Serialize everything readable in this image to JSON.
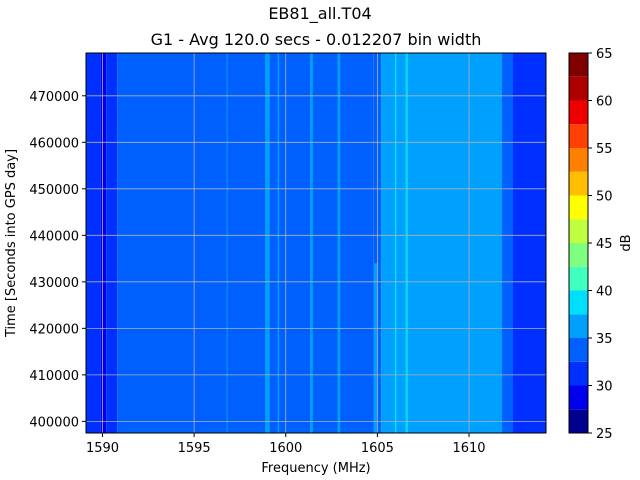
{
  "chart_data": {
    "type": "heatmap",
    "title": "EB81_all.T04",
    "subtitle": "G1 - Avg 120.0 secs - 0.012207 bin width",
    "xlabel": "Frequency (MHz)",
    "ylabel": "Time [Seconds into GPS day]",
    "colorbar_label": "dB",
    "xlim": [
      1589.1,
      1614.2
    ],
    "ylim": [
      397500,
      479200
    ],
    "xticks": [
      1590,
      1595,
      1600,
      1605,
      1610
    ],
    "yticks": [
      400000,
      410000,
      420000,
      430000,
      440000,
      450000,
      460000,
      470000
    ],
    "xtick_labels": [
      "1590",
      "1595",
      "1600",
      "1605",
      "1610"
    ],
    "ytick_labels": [
      "400000",
      "410000",
      "420000",
      "430000",
      "440000",
      "450000",
      "460000",
      "470000"
    ],
    "grid": true,
    "colorbar": {
      "levels": [
        25,
        27.5,
        30,
        32.5,
        35,
        37.5,
        40,
        42.5,
        45,
        47.5,
        50,
        52.5,
        55,
        57.5,
        60,
        62.5,
        65
      ],
      "tick_values": [
        25,
        30,
        35,
        40,
        45,
        50,
        55,
        60,
        65
      ],
      "tick_labels": [
        "25",
        "30",
        "35",
        "40",
        "45",
        "50",
        "55",
        "60",
        "65"
      ],
      "colors": [
        "#00008f",
        "#0000ef",
        "#0030ff",
        "#0060ff",
        "#00a0ff",
        "#00dfff",
        "#40ffbf",
        "#7fff7f",
        "#bfff3f",
        "#ffff00",
        "#ffbf00",
        "#ff7f00",
        "#ff4000",
        "#ef0000",
        "#af0000",
        "#800000"
      ]
    },
    "bands": [
      {
        "from": 1589.1,
        "to": 1589.9,
        "value": 31
      },
      {
        "from": 1589.9,
        "to": 1590.2,
        "value": 28
      },
      {
        "from": 1590.2,
        "to": 1590.8,
        "value": 31
      },
      {
        "from": 1590.8,
        "to": 1604.8,
        "value": 33
      },
      {
        "from": 1604.8,
        "to": 1605.2,
        "value": 34
      },
      {
        "from": 1605.2,
        "to": 1611.8,
        "value": 35
      },
      {
        "from": 1611.8,
        "to": 1612.4,
        "value": 33
      },
      {
        "from": 1612.4,
        "to": 1614.2,
        "value": 31
      }
    ],
    "lines": [
      {
        "freq": 1596.8,
        "value": 35,
        "t0": 397500,
        "t1": 479200,
        "width": 0.05
      },
      {
        "freq": 1599.0,
        "value": 35,
        "t0": 397500,
        "t1": 479200,
        "width": 0.25
      },
      {
        "freq": 1599.6,
        "value": 35,
        "t0": 397500,
        "t1": 479200,
        "width": 0.08
      },
      {
        "freq": 1601.4,
        "value": 35,
        "t0": 397500,
        "t1": 479200,
        "width": 0.15
      },
      {
        "freq": 1602.9,
        "value": 35,
        "t0": 397500,
        "t1": 479200,
        "width": 0.15
      },
      {
        "freq": 1604.9,
        "value": 36,
        "t0": 397500,
        "t1": 434000,
        "width": 0.2
      },
      {
        "freq": 1605.6,
        "value": 37,
        "t0": 397500,
        "t1": 479200,
        "width": 0.08
      },
      {
        "freq": 1606.0,
        "value": 38,
        "t0": 397500,
        "t1": 479200,
        "width": 0.08
      },
      {
        "freq": 1606.3,
        "value": 37,
        "t0": 397500,
        "t1": 479200,
        "width": 0.08
      },
      {
        "freq": 1606.6,
        "value": 38,
        "t0": 397500,
        "t1": 479200,
        "width": 0.12
      },
      {
        "freq": 1607.8,
        "value": 37,
        "t0": 400000,
        "t1": 424000,
        "width": 0.1
      },
      {
        "freq": 1608.2,
        "value": 36,
        "t0": 410000,
        "t1": 413000,
        "width": 0.08
      },
      {
        "freq": 1609.9,
        "value": 36,
        "t0": 402000,
        "t1": 412000,
        "width": 0.4
      }
    ]
  }
}
